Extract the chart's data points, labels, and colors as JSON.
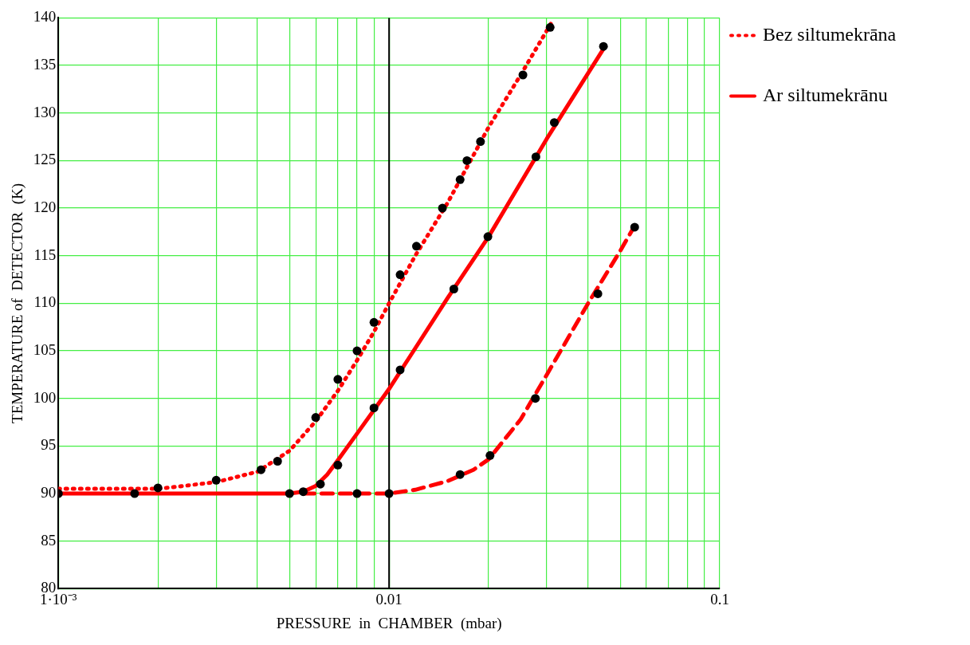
{
  "chart_data": {
    "type": "line",
    "xlabel": "PRESSURE  in  CHAMBER  (mbar)",
    "ylabel": "TEMPERATURE of  DETECTOR  (K)",
    "log": "x",
    "grid": true,
    "legend": "right",
    "xlim": [
      0.001,
      0.1
    ],
    "ylim": [
      80,
      140
    ],
    "xticks": [
      {
        "value": 0.001,
        "label": "1·10⁻³"
      },
      {
        "value": 0.002,
        "label": null
      },
      {
        "value": 0.003,
        "label": null
      },
      {
        "value": 0.004,
        "label": null
      },
      {
        "value": 0.005,
        "label": null
      },
      {
        "value": 0.006,
        "label": null
      },
      {
        "value": 0.007,
        "label": null
      },
      {
        "value": 0.008,
        "label": null
      },
      {
        "value": 0.009,
        "label": null
      },
      0.01,
      {
        "value": 0.02,
        "label": null
      },
      {
        "value": 0.03,
        "label": null
      },
      {
        "value": 0.04,
        "label": null
      },
      {
        "value": 0.05,
        "label": null
      },
      {
        "value": 0.06,
        "label": null
      },
      {
        "value": 0.07,
        "label": null
      },
      {
        "value": 0.08,
        "label": null
      },
      {
        "value": 0.09,
        "label": null
      },
      0.1
    ],
    "yticks": [
      80,
      85,
      90,
      95,
      100,
      105,
      110,
      115,
      120,
      125,
      130,
      135,
      140
    ],
    "ref_lines": [
      {
        "axis": "x",
        "value": 0.01,
        "color": "#000000"
      }
    ],
    "series": [
      {
        "type": "line",
        "name": "Bez siltumekrāna",
        "color": "#ff0000",
        "line_style": "dotted",
        "marker": "none",
        "x": [
          0.001,
          0.002,
          0.003,
          0.004,
          0.005,
          0.006,
          0.007,
          0.008,
          0.009,
          0.01,
          0.012,
          0.015,
          0.02,
          0.025,
          0.031
        ],
        "values": [
          90.5,
          90.5,
          91.2,
          92.3,
          94.5,
          97.6,
          100.8,
          104,
          107,
          110,
          115,
          120.5,
          128.5,
          134,
          139.5
        ]
      },
      {
        "type": "line",
        "name": "Ar siltumekrānu",
        "color": "#ff0000",
        "line_style": "solid",
        "marker": "none",
        "x": [
          0.001,
          0.005,
          0.0055,
          0.006,
          0.0065,
          0.007,
          0.008,
          0.01,
          0.015,
          0.02,
          0.03,
          0.045
        ],
        "values": [
          90,
          90,
          90.2,
          90.8,
          92,
          93.5,
          96.3,
          101,
          110.5,
          117,
          127.3,
          137
        ]
      },
      {
        "type": "line",
        "color": "#ff0000",
        "line_style": "dashed",
        "marker": "none",
        "x": [
          0.0055,
          0.01,
          0.012,
          0.015,
          0.018,
          0.02,
          0.025,
          0.03,
          0.04,
          0.05,
          0.055
        ],
        "values": [
          90,
          90,
          90.4,
          91.3,
          92.5,
          93.6,
          97.8,
          102.5,
          110,
          115.5,
          118
        ]
      },
      {
        "type": "scatter",
        "color": "#000000",
        "marker": "circle",
        "x": [
          0.002,
          0.003,
          0.0041,
          0.0046,
          0.006,
          0.007,
          0.008,
          0.009,
          0.0108,
          0.0121,
          0.0145,
          0.0164,
          0.0172,
          0.0189,
          0.0254,
          0.0307
        ],
        "values": [
          90.6,
          91.4,
          92.5,
          93.4,
          98,
          102,
          105,
          108,
          113,
          116,
          120,
          123,
          125,
          127,
          134,
          139
        ]
      },
      {
        "type": "scatter",
        "color": "#000000",
        "marker": "circle",
        "x": [
          0.001,
          0.0017,
          0.005,
          0.0055,
          0.0062,
          0.007,
          0.009,
          0.0108,
          0.0157,
          0.0199,
          0.0278,
          0.0316,
          0.0445
        ],
        "values": [
          90,
          90,
          90,
          90.2,
          91,
          93,
          99,
          103,
          111.5,
          117,
          125.4,
          129,
          137
        ]
      },
      {
        "type": "scatter",
        "color": "#000000",
        "marker": "circle",
        "x": [
          0.008,
          0.01,
          0.0164,
          0.0202,
          0.0277,
          0.0428,
          0.0553
        ],
        "values": [
          90,
          90,
          92,
          94,
          100,
          111,
          118
        ]
      }
    ]
  }
}
